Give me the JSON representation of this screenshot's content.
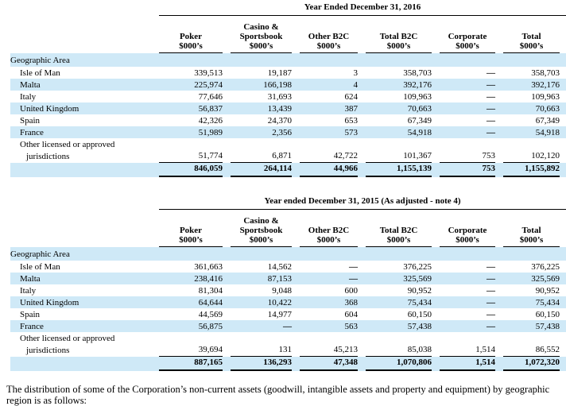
{
  "colors": {
    "row_highlight": "#cfe9f7",
    "rule": "#000000"
  },
  "table_2016": {
    "title": "Year Ended December 31, 2016",
    "unit": "$000’s",
    "cols": [
      "Poker",
      "Casino &\nSportsbook",
      "Other B2C",
      "Total B2C",
      "Corporate",
      "Total"
    ],
    "section": "Geographic Area",
    "rows": [
      {
        "label": "Isle of Man",
        "v": [
          "339,513",
          "19,187",
          "3",
          "358,703",
          "—",
          "358,703"
        ]
      },
      {
        "label": "Malta",
        "v": [
          "225,974",
          "166,198",
          "4",
          "392,176",
          "—",
          "392,176"
        ]
      },
      {
        "label": "Italy",
        "v": [
          "77,646",
          "31,693",
          "624",
          "109,963",
          "—",
          "109,963"
        ]
      },
      {
        "label": "United Kingdom",
        "v": [
          "56,837",
          "13,439",
          "387",
          "70,663",
          "—",
          "70,663"
        ]
      },
      {
        "label": "Spain",
        "v": [
          "42,326",
          "24,370",
          "653",
          "67,349",
          "—",
          "67,349"
        ]
      },
      {
        "label": "France",
        "v": [
          "51,989",
          "2,356",
          "573",
          "54,918",
          "—",
          "54,918"
        ]
      }
    ],
    "other_row": {
      "label1": "Other licensed or approved",
      "label2": "jurisdictions",
      "v": [
        "51,774",
        "6,871",
        "42,722",
        "101,367",
        "753",
        "102,120"
      ]
    },
    "total": [
      "846,059",
      "264,114",
      "44,966",
      "1,155,139",
      "753",
      "1,155,892"
    ]
  },
  "table_2015": {
    "title": "Year ended December 31, 2015 (As adjusted - note 4)",
    "unit": "$000’s",
    "cols": [
      "Poker",
      "Casino &\nSportsbook",
      "Other B2C",
      "Total B2C",
      "Corporate",
      "Total"
    ],
    "section": "Geographic Area",
    "rows": [
      {
        "label": "Isle of Man",
        "v": [
          "361,663",
          "14,562",
          "—",
          "376,225",
          "—",
          "376,225"
        ]
      },
      {
        "label": "Malta",
        "v": [
          "238,416",
          "87,153",
          "—",
          "325,569",
          "—",
          "325,569"
        ]
      },
      {
        "label": "Italy",
        "v": [
          "81,304",
          "9,048",
          "600",
          "90,952",
          "—",
          "90,952"
        ]
      },
      {
        "label": "United Kingdom",
        "v": [
          "64,644",
          "10,422",
          "368",
          "75,434",
          "—",
          "75,434"
        ]
      },
      {
        "label": "Spain",
        "v": [
          "44,569",
          "14,977",
          "604",
          "60,150",
          "—",
          "60,150"
        ]
      },
      {
        "label": "France",
        "v": [
          "56,875",
          "—",
          "563",
          "57,438",
          "—",
          "57,438"
        ]
      }
    ],
    "other_row": {
      "label1": "Other licensed or approved",
      "label2": "jurisdictions",
      "v": [
        "39,694",
        "131",
        "45,213",
        "85,038",
        "1,514",
        "86,552"
      ]
    },
    "total": [
      "887,165",
      "136,293",
      "47,348",
      "1,070,806",
      "1,514",
      "1,072,320"
    ]
  },
  "footer": {
    "text": "The distribution of some of the Corporation’s non-current assets (goodwill, intangible assets and property and equipment) by geographic region is as follows:"
  }
}
